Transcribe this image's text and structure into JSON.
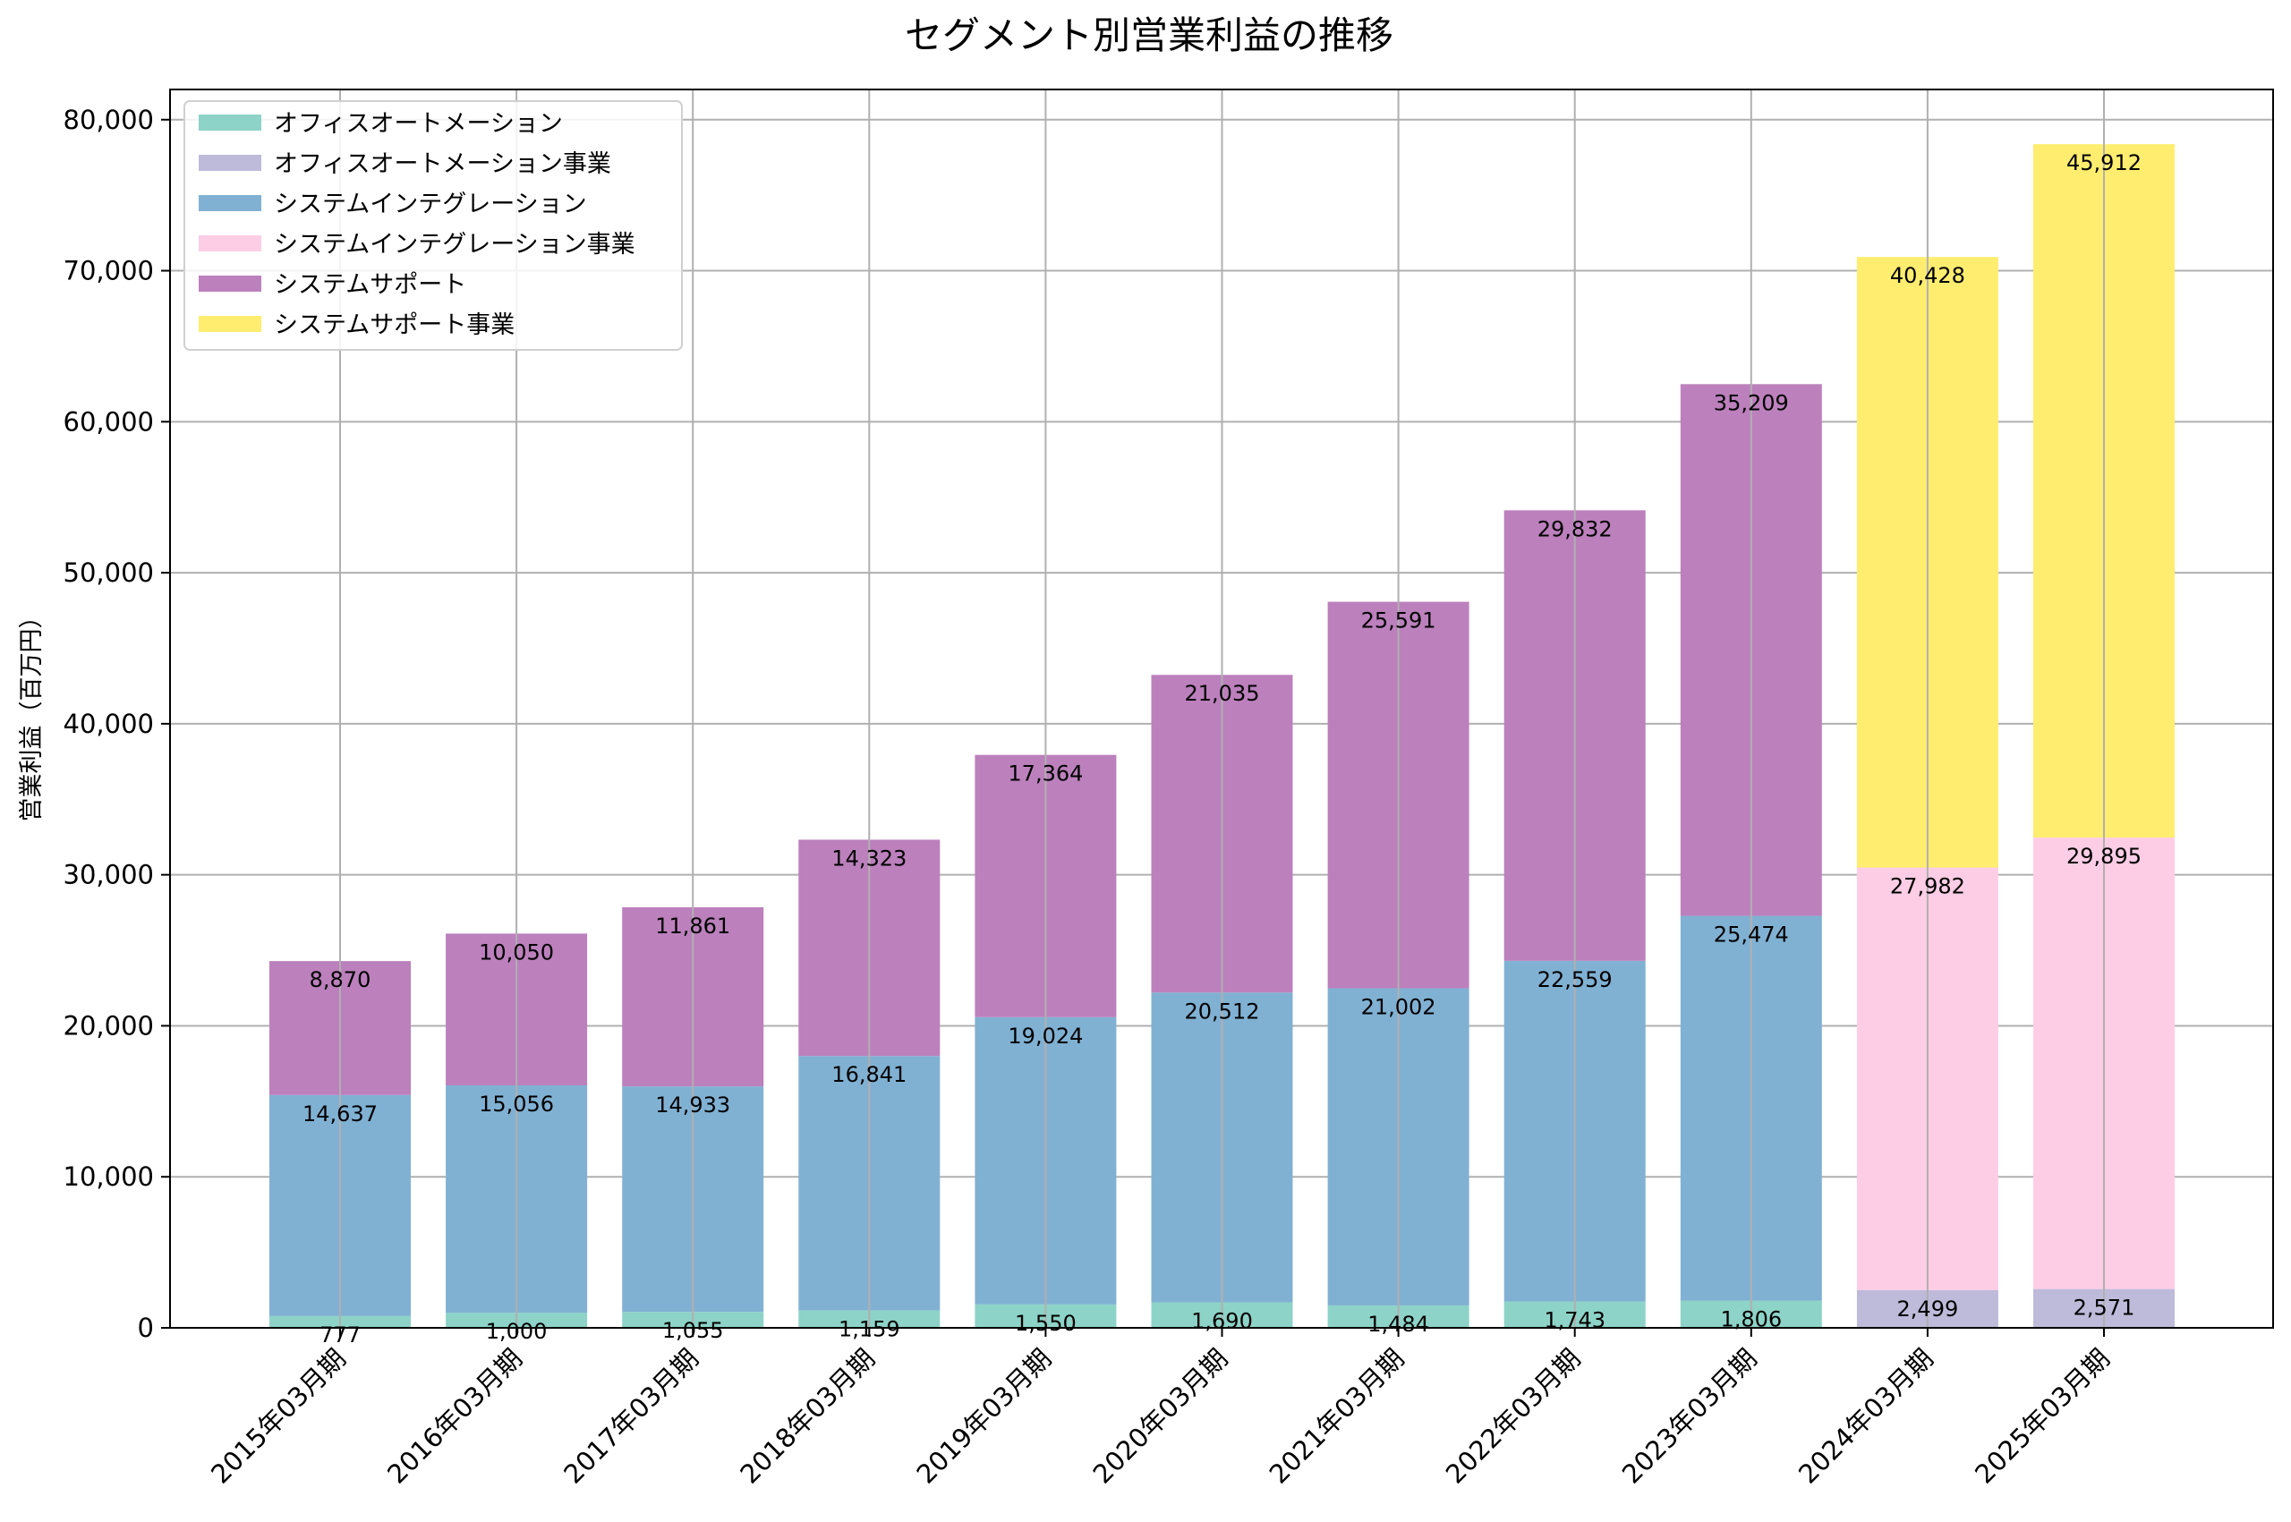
{
  "chart_data": {
    "type": "bar",
    "stacked": true,
    "title": "セグメント別営業利益の推移",
    "xlabel": "",
    "ylabel": "営業利益（百万円）",
    "ylim": [
      0,
      82000
    ],
    "yticks": [
      0,
      10000,
      20000,
      30000,
      40000,
      50000,
      60000,
      70000,
      80000
    ],
    "grid": true,
    "legend_position": "top-left",
    "categories": [
      "2015年03月期",
      "2016年03月期",
      "2017年03月期",
      "2018年03月期",
      "2019年03月期",
      "2020年03月期",
      "2021年03月期",
      "2022年03月期",
      "2023年03月期",
      "2024年03月期",
      "2025年03月期"
    ],
    "series": [
      {
        "name": "オフィスオートメーション",
        "color": "#8dd3c7",
        "values": [
          777,
          1000,
          1055,
          1159,
          1550,
          1690,
          1484,
          1743,
          1806,
          null,
          null
        ]
      },
      {
        "name": "オフィスオートメーション事業",
        "color": "#bebada",
        "values": [
          null,
          null,
          null,
          null,
          null,
          null,
          null,
          null,
          null,
          2499,
          2571
        ]
      },
      {
        "name": "システムインテグレーション",
        "color": "#80b1d3",
        "values": [
          14637,
          15056,
          14933,
          16841,
          19024,
          20512,
          21002,
          22559,
          25474,
          null,
          null
        ]
      },
      {
        "name": "システムインテグレーション事業",
        "color": "#fccde5",
        "values": [
          null,
          null,
          null,
          null,
          null,
          null,
          null,
          null,
          null,
          27982,
          29895
        ]
      },
      {
        "name": "システムサポート",
        "color": "#bc80bd",
        "values": [
          8870,
          10050,
          11861,
          14323,
          17364,
          21035,
          25591,
          29832,
          35209,
          null,
          null
        ]
      },
      {
        "name": "システムサポート事業",
        "color": "#ffed6f",
        "values": [
          null,
          null,
          null,
          null,
          null,
          null,
          null,
          null,
          null,
          40428,
          45912
        ]
      }
    ]
  }
}
